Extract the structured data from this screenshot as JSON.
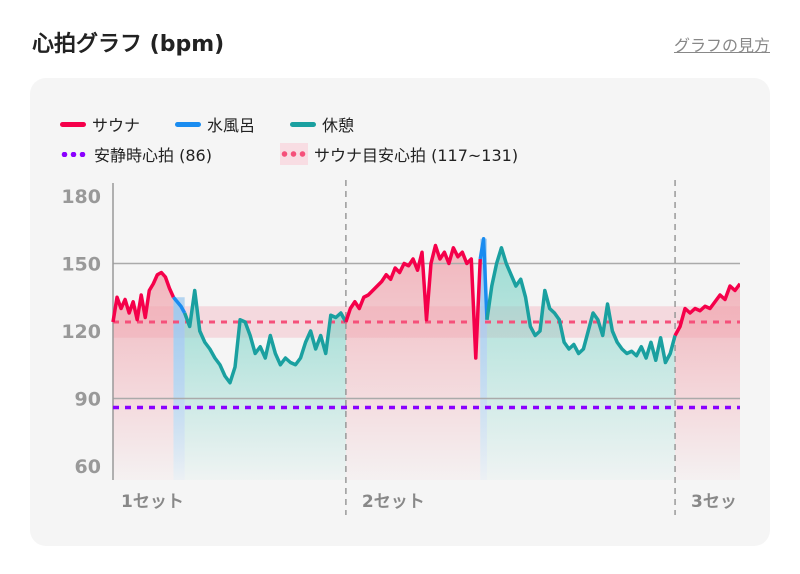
{
  "header": {
    "title": "心拍グラフ (bpm)",
    "help_link": "グラフの見方"
  },
  "colors": {
    "sauna": "#f5004a",
    "water": "#1a8cf0",
    "rest": "#1aa0a0",
    "resting": "#8a00ff",
    "target": "#f5507a"
  },
  "chart_data": {
    "type": "line",
    "title": "心拍グラフ (bpm)",
    "ylabel": "bpm",
    "ylim": [
      60,
      180
    ],
    "xlim": [
      0,
      280
    ],
    "yticks": [
      180,
      150,
      120,
      90,
      60
    ],
    "grid": [
      150,
      90
    ],
    "legend": {
      "placement": "top-left",
      "items": [
        {
          "label": "サウナ",
          "kind": "sauna"
        },
        {
          "label": "水風呂",
          "kind": "water"
        },
        {
          "label": "休憩",
          "kind": "rest"
        },
        {
          "label": "安静時心拍 (86)",
          "kind": "resting"
        },
        {
          "label": "サウナ目安心拍 (117~131)",
          "kind": "target"
        }
      ]
    },
    "resting_hr": 86,
    "target_range": [
      117,
      131
    ],
    "target_line": 124,
    "sets": [
      {
        "label": "1セット",
        "x": 0
      },
      {
        "label": "2セット",
        "x": 104
      },
      {
        "label": "3セッ",
        "x": 251
      }
    ],
    "segments": [
      {
        "kind": "sauna",
        "x0": 0,
        "x1": 27,
        "values": [
          124,
          135,
          130,
          134,
          128,
          133,
          125,
          136,
          126,
          138,
          141,
          145,
          146,
          144,
          139,
          135
        ]
      },
      {
        "kind": "water",
        "x0": 27,
        "x1": 32,
        "values": [
          135,
          133,
          131,
          128
        ]
      },
      {
        "kind": "rest",
        "x0": 32,
        "x1": 104,
        "values": [
          128,
          122,
          138,
          120,
          115,
          112,
          108,
          105,
          100,
          97,
          104,
          125,
          124,
          118,
          110,
          113,
          108,
          118,
          110,
          105,
          108,
          106,
          105,
          108,
          115,
          120,
          112,
          118,
          110,
          127,
          126,
          128,
          124
        ]
      },
      {
        "kind": "sauna",
        "x0": 104,
        "x1": 164,
        "values": [
          124,
          130,
          133,
          130,
          135,
          136,
          138,
          140,
          142,
          145,
          143,
          148,
          146,
          150,
          149,
          152,
          147,
          155,
          125,
          150,
          158,
          152,
          155,
          150,
          157,
          153,
          155,
          150,
          152,
          108,
          152
        ]
      },
      {
        "kind": "water",
        "x0": 164,
        "x1": 167,
        "values": [
          152,
          161,
          125
        ]
      },
      {
        "kind": "rest",
        "x0": 167,
        "x1": 251,
        "values": [
          125,
          140,
          150,
          157,
          150,
          145,
          140,
          143,
          135,
          122,
          118,
          120,
          138,
          130,
          128,
          125,
          115,
          112,
          114,
          110,
          112,
          120,
          128,
          125,
          118,
          132,
          120,
          115,
          112,
          110,
          111,
          109,
          113,
          108,
          115,
          107,
          117,
          106,
          110,
          118
        ]
      },
      {
        "kind": "sauna",
        "x0": 251,
        "x1": 280,
        "values": [
          118,
          122,
          130,
          128,
          130,
          129,
          131,
          130,
          133,
          136,
          134,
          140,
          138,
          141
        ]
      }
    ]
  }
}
